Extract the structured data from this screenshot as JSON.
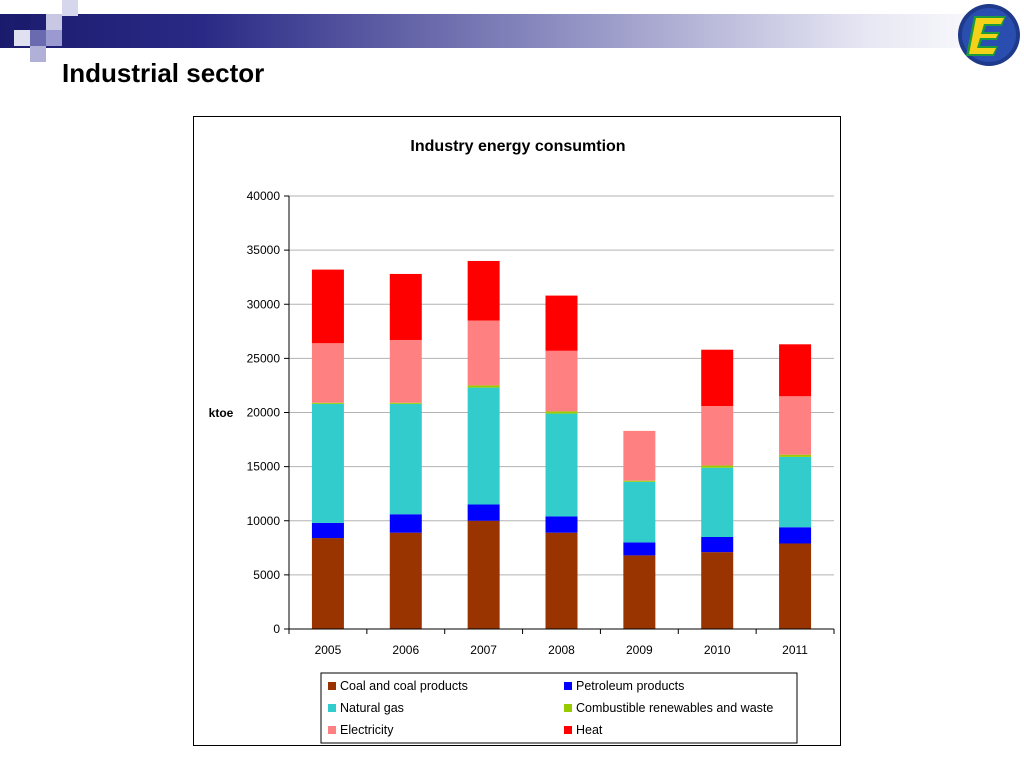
{
  "slide": {
    "title": "Industrial sector"
  },
  "logo": {
    "icon": "energy-e-logo-icon",
    "colors": [
      "#1f3a8a",
      "#f5d21a",
      "#1a9a3a"
    ]
  },
  "chart_data": {
    "type": "bar",
    "stacked": true,
    "title": "Industry energy consumtion",
    "xlabel": "",
    "ylabel": "ktoe",
    "ylim": [
      0,
      40000
    ],
    "yticks": [
      0,
      5000,
      10000,
      15000,
      20000,
      25000,
      30000,
      35000,
      40000
    ],
    "grid": true,
    "legend_position": "bottom",
    "categories": [
      "2005",
      "2006",
      "2007",
      "2008",
      "2009",
      "2010",
      "2011"
    ],
    "series": [
      {
        "name": "Coal and coal products",
        "color": "#993300",
        "values": [
          8400,
          8900,
          10000,
          8900,
          6800,
          7100,
          7900
        ]
      },
      {
        "name": "Petroleum products",
        "color": "#0000ff",
        "values": [
          1400,
          1700,
          1500,
          1500,
          1200,
          1400,
          1500
        ]
      },
      {
        "name": "Natural gas",
        "color": "#33cccc",
        "values": [
          11000,
          10200,
          10800,
          9500,
          5600,
          6400,
          6500
        ]
      },
      {
        "name": "Combustible renewables and waste",
        "color": "#99cc00",
        "values": [
          100,
          100,
          200,
          200,
          100,
          200,
          200
        ]
      },
      {
        "name": "Electricity",
        "color": "#ff8080",
        "values": [
          5500,
          5800,
          6000,
          5600,
          4600,
          5500,
          5400
        ]
      },
      {
        "name": "Heat",
        "color": "#ff0000",
        "values": [
          6800,
          6100,
          5500,
          5100,
          0,
          5200,
          4800
        ]
      }
    ]
  }
}
